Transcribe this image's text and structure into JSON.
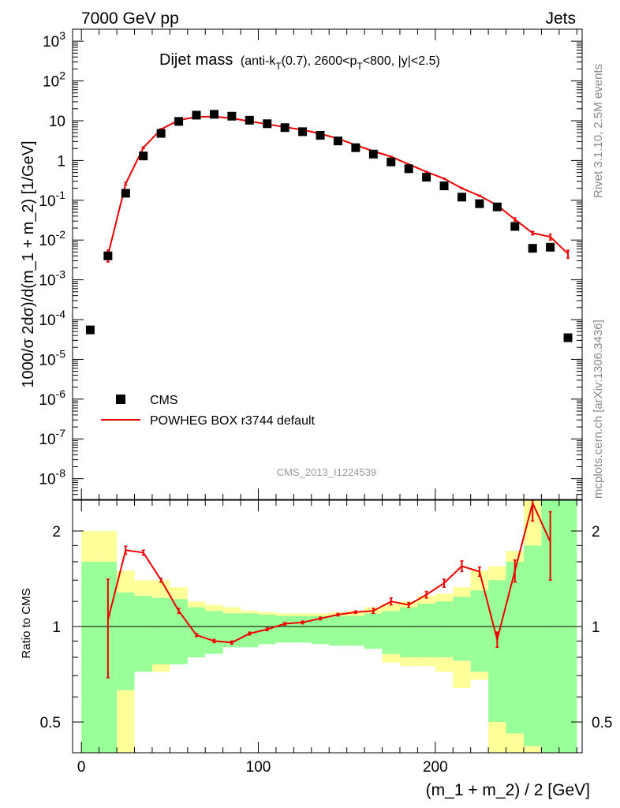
{
  "header": {
    "left": "7000 GeV pp",
    "right": "Jets"
  },
  "side_labels": {
    "rivet": "Rivet 3.1.10,  2.5M events",
    "mcplots": "mcplots.cern.ch [arXiv:1306.3436]"
  },
  "plot_title": {
    "main": "Dijet mass",
    "sub_prefix": "(anti-k",
    "sub_sub1": "T",
    "sub_mid": "(0.7), 2600<p",
    "sub_sub2": "T",
    "sub_suffix": "<800, |y|<2.5)"
  },
  "analysis_id": "CMS_2013_I1224539",
  "legend": {
    "cms": "CMS",
    "mc": "POWHEG BOX r3744 default"
  },
  "colors": {
    "data": "#000000",
    "mc": "#ee0000",
    "band_inner": "#99ff99",
    "band_outer": "#ffff99"
  },
  "chart_data": [
    {
      "type": "line",
      "panel": "main",
      "ylabel": "1000/σ 2dσ)/d(m_1 + m_2) [1/GeV]",
      "yscale": "log",
      "ylim": [
        3e-09,
        2000
      ],
      "xlim": [
        -5,
        283
      ],
      "y_ticks": [
        {
          "v": 1e-08,
          "base": "10",
          "exp": "-8"
        },
        {
          "v": 1e-07,
          "base": "10",
          "exp": "-7"
        },
        {
          "v": 1e-06,
          "base": "10",
          "exp": "-6"
        },
        {
          "v": 1e-05,
          "base": "10",
          "exp": "-5"
        },
        {
          "v": 0.0001,
          "base": "10",
          "exp": "-4"
        },
        {
          "v": 0.001,
          "base": "10",
          "exp": "-3"
        },
        {
          "v": 0.01,
          "base": "10",
          "exp": "-2"
        },
        {
          "v": 0.1,
          "base": "10",
          "exp": "-1"
        },
        {
          "v": 1,
          "base": "1",
          "exp": ""
        },
        {
          "v": 10,
          "base": "10",
          "exp": ""
        },
        {
          "v": 100,
          "base": "10",
          "exp": "2"
        },
        {
          "v": 1000,
          "base": "10",
          "exp": "3"
        }
      ],
      "series": [
        {
          "name": "CMS",
          "x": [
            5,
            15,
            25,
            35,
            45,
            55,
            65,
            75,
            85,
            95,
            105,
            115,
            125,
            135,
            145,
            155,
            165,
            175,
            185,
            195,
            205,
            215,
            225,
            235,
            245,
            255,
            265,
            275
          ],
          "y": [
            5.5e-05,
            0.004,
            0.15,
            1.3,
            4.8,
            9.6,
            13.8,
            14.5,
            13.0,
            10.3,
            8.4,
            6.7,
            5.3,
            4.3,
            3.1,
            2.1,
            1.45,
            0.92,
            0.62,
            0.38,
            0.23,
            0.12,
            0.082,
            0.068,
            0.022,
            0.0062,
            0.0066,
            3.5e-05
          ]
        },
        {
          "name": "POWHEG BOX r3744 default",
          "x": [
            15,
            25,
            35,
            45,
            55,
            65,
            75,
            85,
            95,
            105,
            115,
            125,
            135,
            145,
            155,
            165,
            175,
            185,
            195,
            205,
            215,
            225,
            235,
            245,
            255,
            265,
            275
          ],
          "y": [
            0.0042,
            0.26,
            2.1,
            6.1,
            10.3,
            12.5,
            12.7,
            11.5,
            9.7,
            8.2,
            6.9,
            5.9,
            4.7,
            3.55,
            2.45,
            1.72,
            1.25,
            0.8,
            0.52,
            0.35,
            0.2,
            0.13,
            0.075,
            0.033,
            0.015,
            0.012,
            0.0045
          ],
          "yerr": [
            0.0014,
            0.02,
            0.1,
            0.2,
            0.2,
            0.2,
            0.2,
            0.2,
            0.15,
            0.1,
            0.1,
            0.1,
            0.07,
            0.05,
            0.04,
            0.03,
            0.02,
            0.015,
            0.01,
            0.008,
            0.005,
            0.004,
            0.003,
            0.003,
            0.0015,
            0.002,
            0.001
          ]
        }
      ]
    },
    {
      "type": "line",
      "panel": "ratio",
      "xlabel": "(m_1 + m_2) / 2 [GeV]",
      "ylabel": "Ratio to CMS",
      "yscale": "log",
      "ylim": [
        0.4,
        2.5
      ],
      "xlim": [
        -5,
        283
      ],
      "x_ticks": [
        0,
        100,
        200
      ],
      "y_ticks": [
        0.5,
        1,
        2
      ],
      "bins": [
        0,
        10,
        20,
        30,
        40,
        50,
        60,
        70,
        80,
        90,
        100,
        110,
        120,
        130,
        140,
        150,
        160,
        170,
        180,
        190,
        200,
        210,
        220,
        230,
        240,
        250,
        260,
        270,
        280
      ],
      "band_inner": {
        "low": [
          0.4,
          0.4,
          0.63,
          0.72,
          0.76,
          0.76,
          0.8,
          0.82,
          0.86,
          0.86,
          0.88,
          0.89,
          0.89,
          0.88,
          0.87,
          0.87,
          0.85,
          0.82,
          0.8,
          0.8,
          0.8,
          0.78,
          0.72,
          0.5,
          0.46,
          0.42,
          0.4,
          0.4
        ],
        "high": [
          1.6,
          1.6,
          1.28,
          1.25,
          1.23,
          1.22,
          1.15,
          1.12,
          1.1,
          1.1,
          1.09,
          1.08,
          1.08,
          1.08,
          1.08,
          1.08,
          1.1,
          1.12,
          1.15,
          1.18,
          1.2,
          1.24,
          1.3,
          1.4,
          1.6,
          1.8,
          2.5,
          2.5
        ]
      },
      "band_outer": {
        "low": [
          0.4,
          0.4,
          0.4,
          0.74,
          0.72,
          0.92,
          0.92,
          0.9,
          0.92,
          0.92,
          0.93,
          0.93,
          0.92,
          0.89,
          0.89,
          0.93,
          0.87,
          0.77,
          0.75,
          0.75,
          0.72,
          0.64,
          0.68,
          0.4,
          0.4,
          0.4,
          0.4,
          0.4
        ],
        "high": [
          2.0,
          2.0,
          1.5,
          1.4,
          1.4,
          1.33,
          1.2,
          1.17,
          1.15,
          1.12,
          1.11,
          1.1,
          1.1,
          1.1,
          1.11,
          1.12,
          1.15,
          1.18,
          1.2,
          1.25,
          1.27,
          1.33,
          1.5,
          1.55,
          1.73,
          2.5,
          2.5,
          2.5
        ]
      },
      "series": [
        {
          "name": "POWHEG BOX r3744 default",
          "x": [
            15,
            25,
            35,
            45,
            55,
            65,
            75,
            85,
            95,
            105,
            115,
            125,
            135,
            145,
            155,
            165,
            175,
            185,
            195,
            205,
            215,
            225,
            235,
            245,
            255,
            265
          ],
          "y": [
            1.05,
            1.74,
            1.71,
            1.4,
            1.12,
            0.94,
            0.9,
            0.89,
            0.95,
            0.98,
            1.02,
            1.03,
            1.06,
            1.09,
            1.11,
            1.12,
            1.2,
            1.17,
            1.26,
            1.37,
            1.55,
            1.49,
            0.91,
            1.5,
            2.45,
            1.85
          ],
          "yerr": [
            0.36,
            0.05,
            0.03,
            0.02,
            0.02,
            0.01,
            0.01,
            0.01,
            0.01,
            0.01,
            0.01,
            0.01,
            0.01,
            0.01,
            0.01,
            0.02,
            0.03,
            0.02,
            0.03,
            0.04,
            0.06,
            0.05,
            0.05,
            0.12,
            0.3,
            0.45
          ]
        }
      ]
    }
  ]
}
